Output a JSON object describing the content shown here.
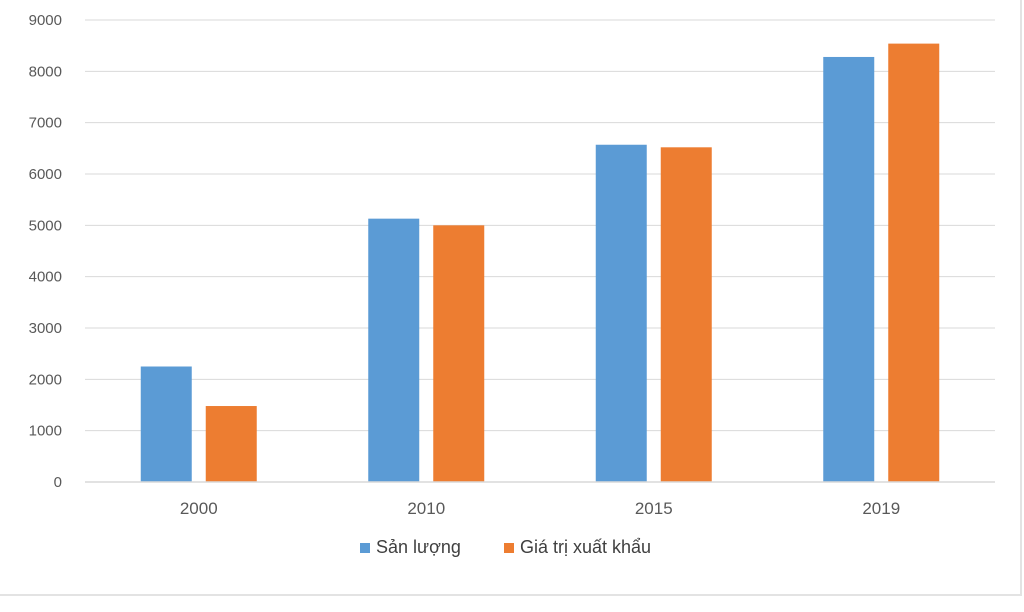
{
  "chart_data": {
    "type": "bar",
    "categories": [
      "2000",
      "2010",
      "2015",
      "2019"
    ],
    "series": [
      {
        "name": "Sản lượng",
        "color": "#5b9bd5",
        "values": [
          2250,
          5130,
          6570,
          8280
        ]
      },
      {
        "name": "Giá trị xuất khẩu",
        "color": "#ed7d31",
        "values": [
          1480,
          5000,
          6520,
          8540
        ]
      }
    ],
    "ylim": [
      0,
      9000
    ],
    "yticks": [
      0,
      1000,
      2000,
      3000,
      4000,
      5000,
      6000,
      7000,
      8000,
      9000
    ],
    "grid": true,
    "gridColor": "#d9d9d9",
    "legend_position": "bottom",
    "title": "",
    "xlabel": "",
    "ylabel": ""
  }
}
